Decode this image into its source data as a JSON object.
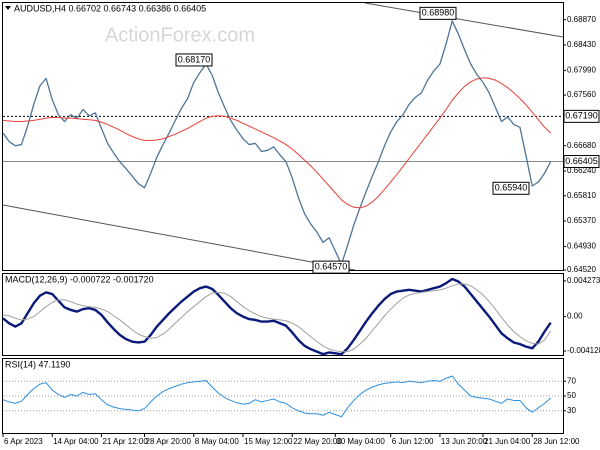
{
  "chart_data": [
    {
      "type": "line",
      "title": "AUDUSD,H4  0.66702 0.66743 0.66386 0.66405",
      "watermark": "ActionForex.com",
      "ylim": [
        0.6452,
        0.6916
      ],
      "yticks": [
        {
          "value": 0.6887,
          "label": "0.68870"
        },
        {
          "value": 0.6843,
          "label": "0.68430"
        },
        {
          "value": 0.6799,
          "label": "0.67990"
        },
        {
          "value": 0.6756,
          "label": "0.67560"
        },
        {
          "value": 0.6668,
          "label": "0.66680"
        },
        {
          "value": 0.6624,
          "label": "0.66240"
        },
        {
          "value": 0.6581,
          "label": "0.65810"
        },
        {
          "value": 0.6537,
          "label": "0.65370"
        },
        {
          "value": 0.6493,
          "label": "0.64930"
        },
        {
          "value": 0.6452,
          "label": "0.64520"
        }
      ],
      "series": [
        {
          "color": "#4f7597",
          "width": 1.3,
          "values": [
            0.669,
            0.6675,
            0.6668,
            0.667,
            0.6702,
            0.674,
            0.6772,
            0.6785,
            0.6748,
            0.6722,
            0.671,
            0.6722,
            0.6715,
            0.6731,
            0.672,
            0.6725,
            0.6698,
            0.6672,
            0.6655,
            0.664,
            0.6628,
            0.6615,
            0.6602,
            0.6595,
            0.662,
            0.6648,
            0.667,
            0.669,
            0.6712,
            0.6733,
            0.675,
            0.6778,
            0.6795,
            0.681,
            0.679,
            0.676,
            0.6735,
            0.6712,
            0.6695,
            0.668,
            0.667,
            0.6672,
            0.6658,
            0.666,
            0.6666,
            0.6652,
            0.664,
            0.6612,
            0.6578,
            0.655,
            0.6532,
            0.6518,
            0.65,
            0.6508,
            0.6485,
            0.6462,
            0.6495,
            0.653,
            0.656,
            0.6588,
            0.6615,
            0.664,
            0.6668,
            0.6692,
            0.671,
            0.6722,
            0.674,
            0.6752,
            0.676,
            0.6782,
            0.6798,
            0.681,
            0.6845,
            0.6885,
            0.6862,
            0.6835,
            0.681,
            0.6792,
            0.6778,
            0.676,
            0.6735,
            0.671,
            0.6718,
            0.6705,
            0.67,
            0.665,
            0.6598,
            0.6605,
            0.662,
            0.66405
          ]
        },
        {
          "color": "#e8403a",
          "width": 1,
          "values": [
            0.6712,
            0.6711,
            0.671,
            0.671,
            0.6711,
            0.6712,
            0.6714,
            0.6716,
            0.6717,
            0.6717,
            0.6716,
            0.6716,
            0.6715,
            0.6714,
            0.6713,
            0.6712,
            0.6709,
            0.6705,
            0.67,
            0.6695,
            0.6689,
            0.6684,
            0.668,
            0.6677,
            0.6677,
            0.6678,
            0.668,
            0.6684,
            0.6688,
            0.6693,
            0.6698,
            0.6704,
            0.671,
            0.6716,
            0.6719,
            0.672,
            0.6719,
            0.6716,
            0.6712,
            0.6707,
            0.6702,
            0.6697,
            0.6692,
            0.6687,
            0.6682,
            0.6676,
            0.667,
            0.6662,
            0.6653,
            0.6643,
            0.6633,
            0.6622,
            0.661,
            0.6598,
            0.6586,
            0.6574,
            0.6566,
            0.6561,
            0.656,
            0.6563,
            0.657,
            0.658,
            0.6592,
            0.6605,
            0.6618,
            0.6632,
            0.6646,
            0.666,
            0.6674,
            0.6688,
            0.6702,
            0.6716,
            0.6731,
            0.6747,
            0.676,
            0.6771,
            0.6779,
            0.6784,
            0.6786,
            0.6785,
            0.6782,
            0.6776,
            0.6769,
            0.676,
            0.675,
            0.6739,
            0.6726,
            0.6713,
            0.67,
            0.669
          ]
        }
      ],
      "annotations": [
        {
          "value": 0.6817,
          "label": "0.68170"
        },
        {
          "value": 0.6898,
          "label": "0.68980"
        },
        {
          "value": 0.6457,
          "label": "0.64570"
        },
        {
          "value": 0.6594,
          "label": "0.65940"
        }
      ],
      "level": {
        "value": 0.6719,
        "label": "0.67190"
      },
      "last_price": {
        "value": 0.66405,
        "label": "0.66405"
      }
    },
    {
      "type": "line",
      "title": "MACD(12,26,9) -0.000722 -0.001720",
      "ylim": [
        -0.0046,
        0.0051
      ],
      "yticks": [
        0.004273,
        {
          "value": 0,
          "label": "0.00"
        },
        -0.004128
      ],
      "series": [
        {
          "color": "#0a1a7a",
          "width": 2.4,
          "values": [
            -0.0002,
            -0.0008,
            -0.0012,
            -0.0008,
            0.0004,
            0.0016,
            0.0025,
            0.0029,
            0.0027,
            0.0019,
            0.0011,
            0.0008,
            0.0006,
            0.0009,
            0.001,
            0.0008,
            0.0002,
            -0.0007,
            -0.0015,
            -0.0022,
            -0.0027,
            -0.003,
            -0.0031,
            -0.003,
            -0.0022,
            -0.0012,
            -0.0004,
            0.0004,
            0.0011,
            0.0018,
            0.0024,
            0.003,
            0.0034,
            0.0036,
            0.0033,
            0.0026,
            0.0018,
            0.001,
            0.0004,
            0.0,
            -0.0003,
            -0.0004,
            -0.0006,
            -0.0006,
            -0.0005,
            -0.0008,
            -0.0011,
            -0.0019,
            -0.0028,
            -0.0035,
            -0.0039,
            -0.0042,
            -0.0045,
            -0.0043,
            -0.0044,
            -0.0045,
            -0.0038,
            -0.0028,
            -0.0017,
            -0.0006,
            0.0004,
            0.0013,
            0.0021,
            0.0027,
            0.003,
            0.0031,
            0.0032,
            0.0031,
            0.003,
            0.0032,
            0.0034,
            0.0036,
            0.004,
            0.0045,
            0.0042,
            0.0036,
            0.0027,
            0.0018,
            0.0009,
            0.0,
            -0.001,
            -0.002,
            -0.0026,
            -0.0031,
            -0.0033,
            -0.0036,
            -0.0038,
            -0.003,
            -0.0018,
            -0.000722
          ]
        },
        {
          "color": "#a0a0a0",
          "width": 1,
          "values": [
            0.0002,
            0.0001,
            -0.0002,
            -0.0004,
            -0.0003,
            0.0,
            0.0006,
            0.0012,
            0.0017,
            0.002,
            0.002,
            0.0018,
            0.0015,
            0.0013,
            0.0012,
            0.0011,
            0.0009,
            0.0006,
            0.0001,
            -0.0004,
            -0.001,
            -0.0016,
            -0.0021,
            -0.0024,
            -0.0026,
            -0.0025,
            -0.0021,
            -0.0015,
            -0.0008,
            -0.0001,
            0.0006,
            0.0012,
            0.0018,
            0.0024,
            0.0028,
            0.0029,
            0.0028,
            0.0024,
            0.0018,
            0.0012,
            0.0007,
            0.0003,
            0.0,
            -0.0002,
            -0.0003,
            -0.0004,
            -0.0005,
            -0.0008,
            -0.0012,
            -0.0018,
            -0.0024,
            -0.003,
            -0.0035,
            -0.0039,
            -0.0041,
            -0.0042,
            -0.0042,
            -0.0039,
            -0.0033,
            -0.0026,
            -0.0017,
            -0.0008,
            0.0001,
            0.0009,
            0.0016,
            0.0022,
            0.0026,
            0.0028,
            0.0029,
            0.003,
            0.0031,
            0.0032,
            0.0034,
            0.0037,
            0.0039,
            0.0039,
            0.0037,
            0.0032,
            0.0026,
            0.0018,
            0.0009,
            -0.0001,
            -0.001,
            -0.0018,
            -0.0024,
            -0.0029,
            -0.0032,
            -0.0033,
            -0.0028,
            -0.00172
          ]
        }
      ]
    },
    {
      "type": "line",
      "title": "RSI(14) 47.1190",
      "ylim": [
        0,
        100
      ],
      "yticks": [
        70,
        50,
        30
      ],
      "grid": true,
      "series": [
        {
          "color": "#2e8fe0",
          "width": 1,
          "values": [
            45,
            42,
            40,
            43,
            52,
            60,
            66,
            68,
            58,
            52,
            48,
            52,
            50,
            55,
            52,
            53,
            45,
            38,
            35,
            33,
            32,
            31,
            30,
            33,
            42,
            50,
            56,
            60,
            63,
            66,
            68,
            69,
            70,
            71,
            62,
            54,
            48,
            44,
            41,
            39,
            40,
            45,
            42,
            44,
            46,
            42,
            40,
            34,
            30,
            27,
            26,
            26,
            24,
            28,
            25,
            22,
            34,
            44,
            52,
            58,
            62,
            65,
            67,
            68,
            69,
            68,
            70,
            69,
            68,
            70,
            71,
            70,
            74,
            77,
            66,
            58,
            50,
            48,
            47,
            46,
            43,
            40,
            46,
            44,
            44,
            34,
            28,
            34,
            40,
            47.119
          ]
        }
      ],
      "xlim": [
        0,
        91
      ],
      "xticks": [
        {
          "value": 0,
          "label": "6 Apr 2023"
        },
        {
          "value": 8,
          "label": "14 Apr 04:00"
        },
        {
          "value": 16,
          "label": "21 Apr 12:00"
        },
        {
          "value": 23,
          "label": "28 Apr 20:00"
        },
        {
          "value": 31,
          "label": "8 May 04:00"
        },
        {
          "value": 39,
          "label": "15 May 12:00"
        },
        {
          "value": 47,
          "label": "22 May 20:00"
        },
        {
          "value": 54,
          "label": "30 May 04:00"
        },
        {
          "value": 63,
          "label": "6 Jun 12:00"
        },
        {
          "value": 71,
          "label": "13 Jun 20:00"
        },
        {
          "value": 78,
          "label": "21 Jun 04:00"
        },
        {
          "value": 86,
          "label": "28 Jun 12:00"
        }
      ]
    }
  ]
}
